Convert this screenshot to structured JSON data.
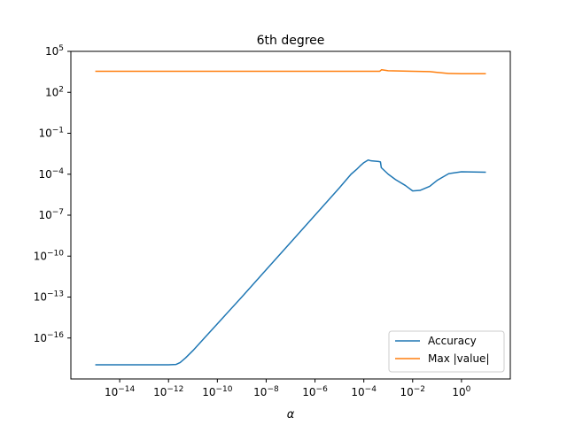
{
  "chart_data": {
    "type": "line",
    "title": "6th degree",
    "xlabel": "α",
    "ylabel": "",
    "xscale": "log",
    "yscale": "log",
    "xlim": [
      1e-16,
      100.0
    ],
    "ylim": [
      1e-19,
      100000.0
    ],
    "legend_position": "lower-right",
    "grid": false,
    "x_ticks": [
      {
        "value": 1e-14,
        "base": "10",
        "exp": "−14"
      },
      {
        "value": 1e-12,
        "base": "10",
        "exp": "−12"
      },
      {
        "value": 1e-10,
        "base": "10",
        "exp": "−10"
      },
      {
        "value": 1e-08,
        "base": "10",
        "exp": "−8"
      },
      {
        "value": 1e-06,
        "base": "10",
        "exp": "−6"
      },
      {
        "value": 0.0001,
        "base": "10",
        "exp": "−4"
      },
      {
        "value": 0.01,
        "base": "10",
        "exp": "−2"
      },
      {
        "value": 1,
        "base": "10",
        "exp": "0"
      }
    ],
    "y_ticks": [
      {
        "value": 1e-16,
        "base": "10",
        "exp": "−16"
      },
      {
        "value": 1e-13,
        "base": "10",
        "exp": "−13"
      },
      {
        "value": 1e-10,
        "base": "10",
        "exp": "−10"
      },
      {
        "value": 1e-07,
        "base": "10",
        "exp": "−7"
      },
      {
        "value": 0.0001,
        "base": "10",
        "exp": "−4"
      },
      {
        "value": 0.1,
        "base": "10",
        "exp": "−1"
      },
      {
        "value": 100.0,
        "base": "10",
        "exp": "2"
      },
      {
        "value": 100000.0,
        "base": "10",
        "exp": "5"
      }
    ],
    "series": [
      {
        "name": "Accuracy",
        "color": "#1f77b4",
        "points": [
          [
            1e-15,
            1.1e-18
          ],
          [
            1e-14,
            1.1e-18
          ],
          [
            1e-13,
            1.1e-18
          ],
          [
            1e-12,
            1.1e-18
          ],
          [
            2e-12,
            1.15e-18
          ],
          [
            3e-12,
            1.6e-18
          ],
          [
            5e-12,
            3.5e-18
          ],
          [
            1e-11,
            1.2e-17
          ],
          [
            1e-10,
            1.1e-15
          ],
          [
            1e-09,
            1e-13
          ],
          [
            1e-08,
            1e-11
          ],
          [
            1e-07,
            1e-09
          ],
          [
            1e-06,
            1e-07
          ],
          [
            1e-05,
            1e-05
          ],
          [
            3e-05,
            0.0001
          ],
          [
            5e-05,
            0.00022
          ],
          [
            7e-05,
            0.0004
          ],
          [
            0.0001,
            0.0007
          ],
          [
            0.00015,
            0.0011
          ],
          [
            0.0002,
            0.00095
          ],
          [
            0.0004,
            0.00085
          ],
          [
            0.00048,
            0.0008
          ],
          [
            0.00052,
            0.0003
          ],
          [
            0.001,
            0.0001
          ],
          [
            0.002,
            4e-05
          ],
          [
            0.005,
            1.5e-05
          ],
          [
            0.01,
            6e-06
          ],
          [
            0.02,
            6.5e-06
          ],
          [
            0.05,
            1.3e-05
          ],
          [
            0.1,
            3.5e-05
          ],
          [
            0.3,
            0.00011
          ],
          [
            1,
            0.00015
          ],
          [
            10,
            0.00014
          ]
        ]
      },
      {
        "name": "Max |value|",
        "color": "#ff7f0e",
        "points": [
          [
            1e-15,
            3500.0
          ],
          [
            1e-12,
            3500.0
          ],
          [
            1e-09,
            3500.0
          ],
          [
            1e-06,
            3500.0
          ],
          [
            0.00045,
            3500.0
          ],
          [
            0.00053,
            4500.0
          ],
          [
            0.001,
            3800.0
          ],
          [
            0.01,
            3500.0
          ],
          [
            0.05,
            3300.0
          ],
          [
            0.1,
            2900.0
          ],
          [
            0.3,
            2400.0
          ],
          [
            1,
            2300.0
          ],
          [
            10,
            2300.0
          ]
        ]
      }
    ]
  }
}
